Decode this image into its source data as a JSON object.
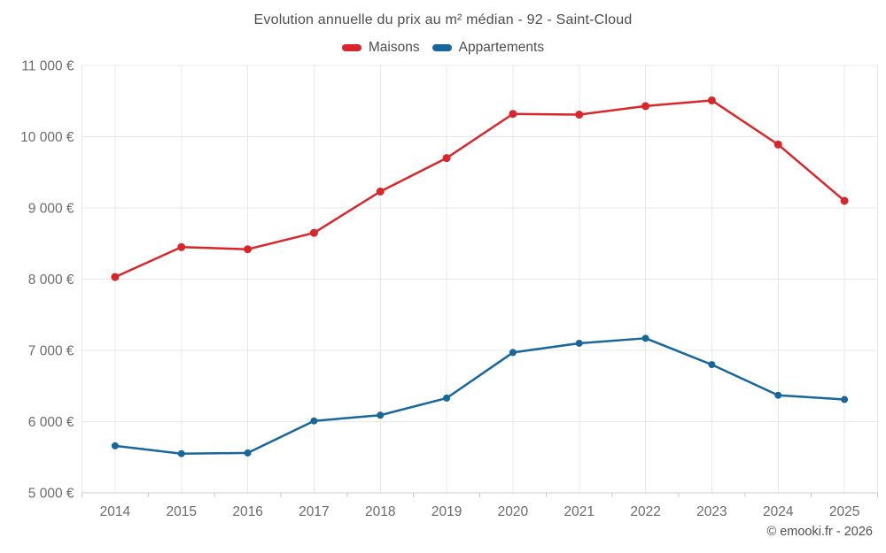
{
  "header": {
    "title": "Evolution annuelle du prix au m² médian - 92 - Saint-Cloud"
  },
  "legend": {
    "items": [
      {
        "label": "Maisons",
        "color": "#d9262b"
      },
      {
        "label": "Appartements",
        "color": "#17679c"
      }
    ]
  },
  "footer": {
    "credit": "© emooki.fr - 2026"
  },
  "styles": {
    "grid_color": "#e8e8e8",
    "axis_color": "#cccccc",
    "label_color": "#6b6b6b",
    "title_color": "#4d4d4d"
  },
  "chart_data": {
    "type": "line",
    "title": "Evolution annuelle du prix au m² médian - 92 - Saint-Cloud",
    "xlabel": "",
    "ylabel": "",
    "categories": [
      "2014",
      "2015",
      "2016",
      "2017",
      "2018",
      "2019",
      "2020",
      "2021",
      "2022",
      "2023",
      "2024",
      "2025"
    ],
    "series": [
      {
        "name": "Maisons",
        "color": "#d9262b",
        "marker_radius": 4.5,
        "values": [
          8030,
          8450,
          8420,
          8650,
          9230,
          9700,
          10320,
          10310,
          10430,
          10510,
          9890,
          9100
        ]
      },
      {
        "name": "Appartements",
        "color": "#17679c",
        "marker_radius": 4,
        "values": [
          5660,
          5550,
          5560,
          6010,
          6090,
          6330,
          6970,
          7100,
          7170,
          6800,
          6370,
          6310
        ]
      }
    ],
    "ylim": [
      5000,
      11000
    ],
    "yticks": [
      {
        "value": 11000,
        "label": "11 000 €"
      },
      {
        "value": 10000,
        "label": "10 000 €"
      },
      {
        "value": 9000,
        "label": "9 000 €"
      },
      {
        "value": 8000,
        "label": "8 000 €"
      },
      {
        "value": 7000,
        "label": "7 000 €"
      },
      {
        "value": 6000,
        "label": "6 000 €"
      },
      {
        "value": 5000,
        "label": "5 000 €"
      }
    ],
    "grid": true,
    "legend_position": "top",
    "unit": "€"
  }
}
